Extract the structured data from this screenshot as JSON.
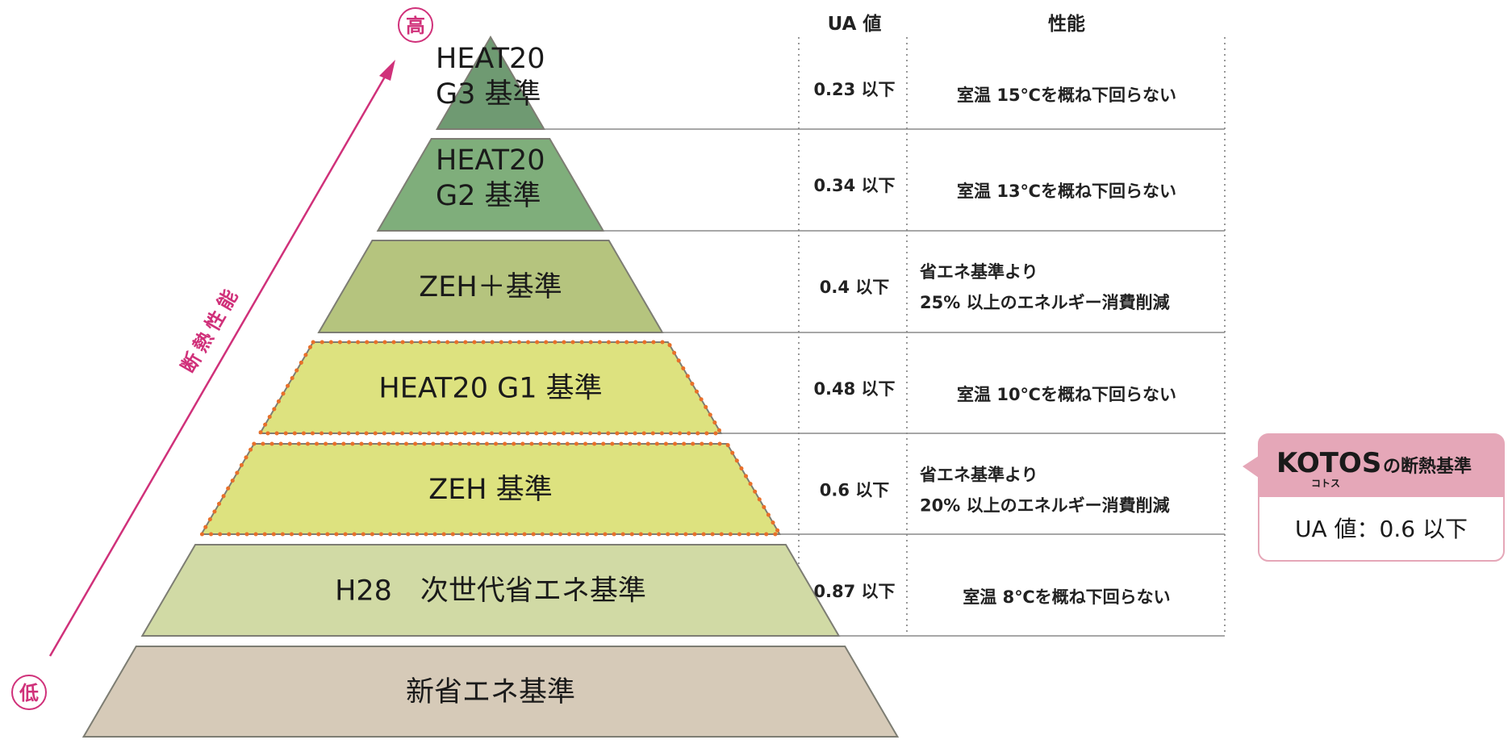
{
  "axis": {
    "high_label": "高",
    "low_label": "低",
    "arrow_label": "断熱性能",
    "color": "#d0317a"
  },
  "headers": {
    "ua": "UA 値",
    "performance": "性能"
  },
  "tiers": [
    {
      "label_lines": [
        "HEAT20",
        "G3 基準"
      ],
      "ua": "0.23 以下",
      "perf_lines": [
        "室温 15℃を概ね下回らない"
      ],
      "fill": "#6f9a72",
      "dotted": false
    },
    {
      "label_lines": [
        "HEAT20",
        "G2 基準"
      ],
      "ua": "0.34 以下",
      "perf_lines": [
        "室温 13℃を概ね下回らない"
      ],
      "fill": "#7fae7b",
      "dotted": false
    },
    {
      "label_lines": [
        "ZEH＋基準"
      ],
      "ua": "0.4 以下",
      "perf_lines": [
        "省エネ基準より",
        "25% 以上のエネルギー消費削減"
      ],
      "fill": "#b5c47e",
      "dotted": false
    },
    {
      "label_lines": [
        "HEAT20 G1 基準"
      ],
      "ua": "0.48 以下",
      "perf_lines": [
        "室温 10℃を概ね下回らない"
      ],
      "fill": "#dde27f",
      "dotted": true
    },
    {
      "label_lines": [
        "ZEH 基準"
      ],
      "ua": "0.6 以下",
      "perf_lines": [
        "省エネ基準より",
        "20% 以上のエネルギー消費削減"
      ],
      "fill": "#dde27f",
      "dotted": true
    },
    {
      "label_lines": [
        "H28　次世代省エネ基準"
      ],
      "ua": "0.87 以下",
      "perf_lines": [
        "室温 8℃を概ね下回らない"
      ],
      "fill": "#d1daa5",
      "dotted": false
    },
    {
      "label_lines": [
        "新省エネ基準"
      ],
      "ua": "",
      "perf_lines": [],
      "fill": "#d6cab8",
      "dotted": false
    }
  ],
  "callout": {
    "brand": "KOTOS",
    "brand_ruby": "コトス",
    "title_suffix": "の断熱基準",
    "value": "UA 値：0.6 以下",
    "accent": "#e5a7b8"
  },
  "dotted_color": "#e8702a"
}
